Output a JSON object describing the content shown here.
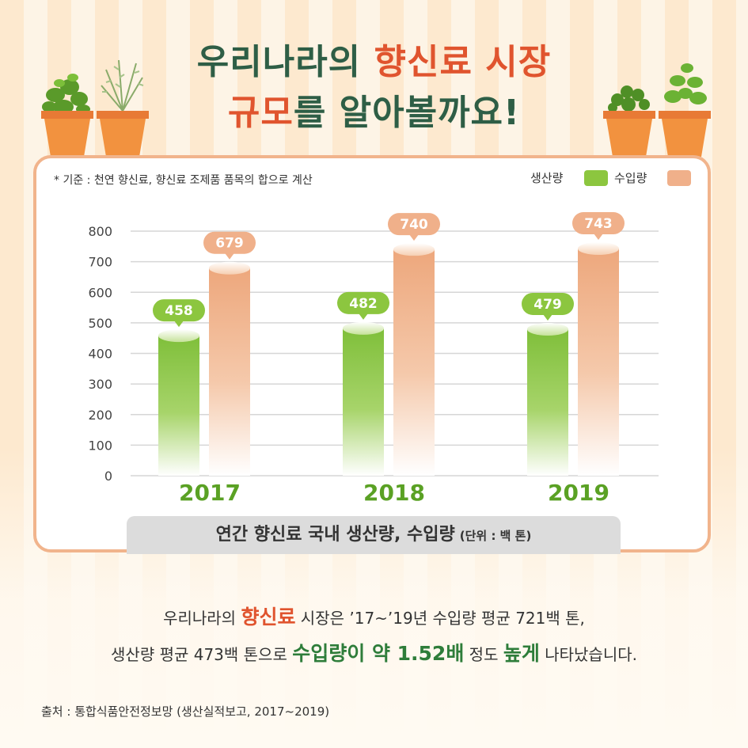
{
  "header": {
    "title_line1_part1": "우리나라의",
    "title_line1_part2": "향신료 시장",
    "title_line2_part1": "규모",
    "title_line2_part2": "를 알아볼까요!"
  },
  "note": "* 기준 : 천연 향신료, 향신료 조제품 품목의 합으로 계산",
  "colors": {
    "production": "#8cc63f",
    "import": "#f0b08a",
    "title_green": "#2e5e46",
    "title_orange": "#e0542e",
    "frame": "#f1b48c"
  },
  "chart_data": {
    "type": "bar",
    "categories": [
      "2017",
      "2018",
      "2019"
    ],
    "series": [
      {
        "name": "생산량",
        "values": [
          458,
          482,
          479
        ]
      },
      {
        "name": "수입량",
        "values": [
          679,
          740,
          743
        ]
      }
    ],
    "y_ticks": [
      "800",
      "700",
      "600",
      "500",
      "400",
      "300",
      "200",
      "100",
      "0"
    ],
    "ylim": [
      0,
      800
    ],
    "grid": true,
    "legend_position": "top-right",
    "title": "연간 향신료 국내 생산량, 수입량",
    "unit_label": "(단위 : 백 톤)"
  },
  "summary": {
    "line1_part1": "우리나라의 ",
    "line1_highlight": "향신료",
    "line1_part2": " 시장은 ’17~’19년 수입량 평균 721백 톤,",
    "line2_part1": "생산량 평균 473백 톤으로 ",
    "line2_highlight1": "수입량이 약 1.52배",
    "line2_part2": " 정도 ",
    "line2_highlight2": "높게",
    "line2_part3": " 나타났습니다."
  },
  "source": "출처 : 통합식품안전정보망 (생산실적보고, 2017~2019)"
}
